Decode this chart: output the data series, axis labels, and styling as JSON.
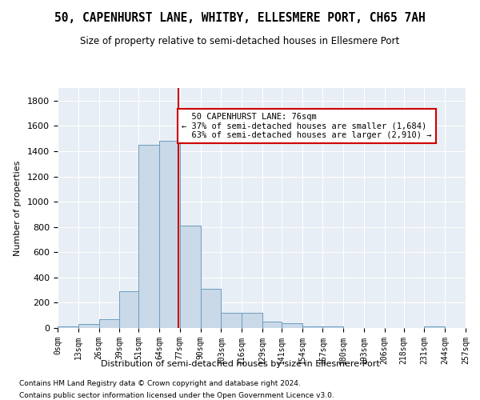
{
  "title": "50, CAPENHURST LANE, WHITBY, ELLESMERE PORT, CH65 7AH",
  "subtitle": "Size of property relative to semi-detached houses in Ellesmere Port",
  "xlabel": "Distribution of semi-detached houses by size in Ellesmere Port",
  "ylabel": "Number of properties",
  "property_size": 76,
  "property_label": "50 CAPENHURST LANE: 76sqm",
  "smaller_pct": 37,
  "smaller_count": 1684,
  "larger_pct": 63,
  "larger_count": 2910,
  "bin_edges": [
    0,
    13,
    26,
    39,
    51,
    64,
    77,
    90,
    103,
    116,
    129,
    141,
    154,
    167,
    180,
    193,
    206,
    218,
    231,
    244,
    257
  ],
  "bin_labels": [
    "0sqm",
    "13sqm",
    "26sqm",
    "39sqm",
    "51sqm",
    "64sqm",
    "77sqm",
    "90sqm",
    "103sqm",
    "116sqm",
    "129sqm",
    "141sqm",
    "154sqm",
    "167sqm",
    "180sqm",
    "193sqm",
    "206sqm",
    "218sqm",
    "231sqm",
    "244sqm",
    "257sqm"
  ],
  "bar_heights": [
    10,
    30,
    70,
    290,
    1450,
    1480,
    810,
    310,
    120,
    120,
    50,
    40,
    15,
    10,
    0,
    0,
    0,
    0,
    10,
    0
  ],
  "bar_color": "#c9d9e8",
  "bar_edge_color": "#6a9ec0",
  "vline_x": 76,
  "vline_color": "#cc0000",
  "annotation_box_color": "#cc0000",
  "ylim": [
    0,
    1900
  ],
  "yticks": [
    0,
    200,
    400,
    600,
    800,
    1000,
    1200,
    1400,
    1600,
    1800
  ],
  "background_color": "#e8eef5",
  "footer_line1": "Contains HM Land Registry data © Crown copyright and database right 2024.",
  "footer_line2": "Contains public sector information licensed under the Open Government Licence v3.0."
}
